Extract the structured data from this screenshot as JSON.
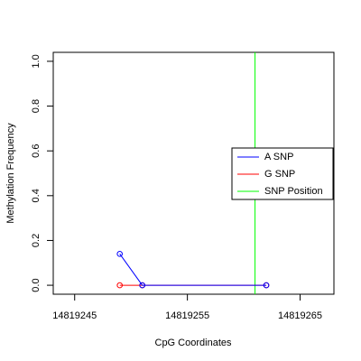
{
  "chart_data": {
    "type": "line",
    "xlabel": "CpG Coordinates",
    "ylabel": "Methylation Frequency",
    "x": [
      14819249,
      14819251,
      14819262
    ],
    "series": [
      {
        "name": "A SNP",
        "color": "#0000ff",
        "values": [
          0.14,
          0,
          0
        ]
      },
      {
        "name": "G SNP",
        "color": "#ff0000",
        "values": [
          0,
          0,
          0
        ]
      }
    ],
    "vlines": [
      {
        "name": "SNP Position",
        "color": "#00ff00",
        "x": 14819261
      }
    ],
    "xlim": [
      14819243.1,
      14819268.0
    ],
    "xticks": [
      14819245,
      14819255,
      14819265
    ],
    "ylim": [
      -0.04,
      1.04
    ],
    "yticks": [
      {
        "value": 0,
        "label": "0.0"
      },
      0.2,
      0.4,
      0.6,
      0.8,
      {
        "value": 1,
        "label": "1.0"
      }
    ],
    "legend": "right"
  }
}
